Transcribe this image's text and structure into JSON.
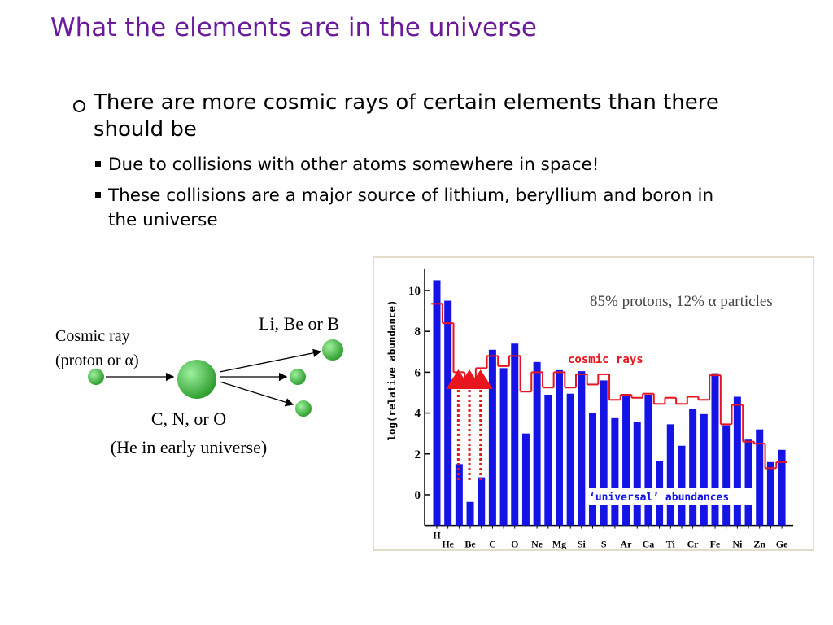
{
  "slide": {
    "title": "What the elements are in the universe",
    "bullets": [
      {
        "text": "There are more cosmic rays of certain elements than there should be",
        "sub": [
          "Due to collisions with other atoms somewhere in space!",
          "These collisions are a major source of lithium, beryllium and boron in the universe"
        ]
      }
    ],
    "diagram": {
      "projectile": "Cosmic ray (proton or α)",
      "products": "Li, Be or B",
      "target": "C, N, or O",
      "target_note": "(He in early universe)"
    }
  },
  "chart_data": {
    "type": "bar",
    "y_label": "log(relative abundance)",
    "annotation": "85% protons, 12% α particles",
    "categories": [
      "H",
      "He",
      null,
      "Be",
      null,
      "C",
      null,
      "O",
      null,
      "Ne",
      null,
      "Mg",
      null,
      "Si",
      null,
      "S",
      null,
      "Ar",
      null,
      "Ca",
      null,
      "Ti",
      null,
      "Cr",
      null,
      "Fe",
      null,
      "Ni",
      null,
      "Zn",
      null,
      "Ge"
    ],
    "series": [
      {
        "name": "‘universal’ abundances",
        "color": "#1414e6",
        "values": [
          10.5,
          9.5,
          1.5,
          -0.35,
          0.85,
          7.1,
          6.2,
          7.4,
          3.0,
          6.5,
          4.9,
          6.1,
          4.95,
          6.05,
          4.0,
          5.6,
          3.75,
          4.9,
          3.55,
          4.9,
          1.65,
          3.45,
          2.4,
          4.2,
          3.95,
          5.95,
          3.4,
          4.8,
          2.7,
          3.2,
          1.6,
          2.2
        ]
      },
      {
        "name": "cosmic rays",
        "color": "#e8141e",
        "values": [
          9.35,
          8.4,
          6.0,
          5.7,
          6.2,
          6.8,
          6.3,
          6.8,
          5.05,
          6.0,
          5.25,
          6.0,
          5.25,
          5.9,
          5.4,
          5.9,
          4.65,
          4.9,
          4.75,
          4.95,
          4.45,
          4.75,
          4.45,
          4.8,
          4.65,
          5.85,
          3.45,
          4.4,
          2.6,
          2.5,
          1.3,
          1.6
        ]
      }
    ],
    "ylim": [
      -1.5,
      11
    ],
    "yticks": [
      0,
      2,
      4,
      6,
      8,
      10
    ],
    "grid": false
  }
}
